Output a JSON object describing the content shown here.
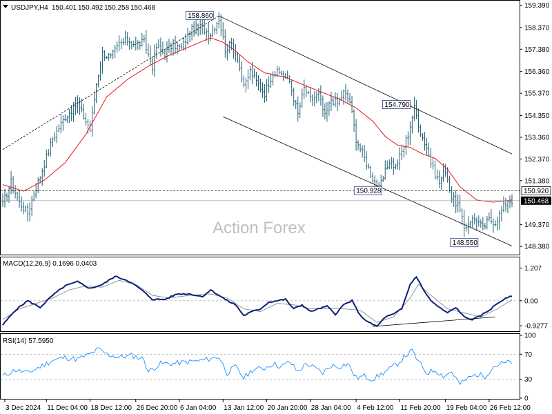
{
  "watermark": "Action Forex",
  "colors": {
    "price_bars": "#1f5e73",
    "moving_average": "#e8161d",
    "trend_lines": "#000000",
    "macd_line": "#0b1f7a",
    "signal_line": "#8a8a8a",
    "rsi_line": "#1e90ff",
    "current_price_box": "#000000",
    "level_box_border": "#1e3a8a"
  },
  "chart_data": [
    {
      "type": "ohlc",
      "panel": "price",
      "header": {
        "symbol": "USDJPY,H4",
        "open": "150.401",
        "high": "150.492",
        "low": "150.258",
        "close": "150.468"
      },
      "y_ticks": [
        "159.390",
        "158.370",
        "157.380",
        "156.360",
        "155.370",
        "154.350",
        "153.360",
        "152.370",
        "151.380",
        "149.370",
        "148.380"
      ],
      "ylim": [
        148.1,
        159.5
      ],
      "current_price": "150.468",
      "level_label": "150.920",
      "level_value": 150.92,
      "annotations": [
        {
          "label": "158.860",
          "value": 158.86,
          "x_index": 104
        },
        {
          "label": "154.790",
          "value": 154.79,
          "x_index": 198
        },
        {
          "label": "150.928",
          "value": 150.928,
          "x_index": 183
        },
        {
          "label": "148.550",
          "value": 148.55,
          "x_index": 228
        }
      ],
      "x_tick_labels": [
        "3 Dec 2024",
        "11 Dec 04:00",
        "18 Dec 12:00",
        "26 Dec 20:00",
        "6 Jan 04:00",
        "13 Jan 12:00",
        "20 Jan 20:00",
        "28 Jan 04:00",
        "4 Feb 12:00",
        "11 Feb 20:00",
        "19 Feb 04:00",
        "26 Feb 12:00"
      ],
      "x_tick_index": [
        1,
        21,
        42,
        64,
        85,
        106,
        127,
        148,
        170,
        191,
        213,
        234
      ],
      "bar_count": 246,
      "close_anchors": [
        [
          0,
          150.3
        ],
        [
          4,
          151.3
        ],
        [
          8,
          150.4
        ],
        [
          12,
          149.9
        ],
        [
          15,
          150.8
        ],
        [
          18,
          151.6
        ],
        [
          24,
          153.3
        ],
        [
          30,
          154.3
        ],
        [
          36,
          154.9
        ],
        [
          42,
          153.7
        ],
        [
          45,
          155.8
        ],
        [
          48,
          157.2
        ],
        [
          52,
          157.0
        ],
        [
          56,
          157.6
        ],
        [
          60,
          157.8
        ],
        [
          64,
          157.6
        ],
        [
          68,
          157.7
        ],
        [
          72,
          156.6
        ],
        [
          74,
          157.5
        ],
        [
          78,
          157.2
        ],
        [
          82,
          157.6
        ],
        [
          86,
          157.4
        ],
        [
          90,
          158.2
        ],
        [
          95,
          158.4
        ],
        [
          100,
          158.1
        ],
        [
          104,
          158.8
        ],
        [
          107,
          157.4
        ],
        [
          110,
          157.6
        ],
        [
          113,
          157.0
        ],
        [
          116,
          155.6
        ],
        [
          119,
          156.4
        ],
        [
          122,
          155.9
        ],
        [
          126,
          155.4
        ],
        [
          130,
          156.3
        ],
        [
          134,
          156.3
        ],
        [
          138,
          155.9
        ],
        [
          142,
          154.4
        ],
        [
          145,
          155.6
        ],
        [
          148,
          155.1
        ],
        [
          152,
          155.3
        ],
        [
          155,
          154.3
        ],
        [
          158,
          155.1
        ],
        [
          161,
          154.9
        ],
        [
          164,
          155.4
        ],
        [
          167,
          155.0
        ],
        [
          170,
          153.3
        ],
        [
          174,
          152.4
        ],
        [
          178,
          151.5
        ],
        [
          181,
          151.0
        ],
        [
          183,
          151.5
        ],
        [
          186,
          152.3
        ],
        [
          189,
          152.0
        ],
        [
          192,
          152.7
        ],
        [
          195,
          153.5
        ],
        [
          198,
          154.7
        ],
        [
          201,
          153.6
        ],
        [
          204,
          152.9
        ],
        [
          207,
          151.9
        ],
        [
          210,
          151.3
        ],
        [
          213,
          151.9
        ],
        [
          216,
          150.6
        ],
        [
          219,
          150.3
        ],
        [
          222,
          149.2
        ],
        [
          225,
          149.6
        ],
        [
          228,
          149.6
        ],
        [
          231,
          149.2
        ],
        [
          234,
          149.6
        ],
        [
          237,
          149.5
        ],
        [
          240,
          150.0
        ],
        [
          243,
          150.5
        ],
        [
          245,
          150.47
        ]
      ],
      "moving_average_anchors": [
        [
          0,
          151.2
        ],
        [
          10,
          150.9
        ],
        [
          20,
          151.4
        ],
        [
          30,
          152.2
        ],
        [
          40,
          153.5
        ],
        [
          50,
          155.2
        ],
        [
          60,
          156.0
        ],
        [
          70,
          156.6
        ],
        [
          80,
          157.1
        ],
        [
          90,
          157.5
        ],
        [
          100,
          157.9
        ],
        [
          106,
          157.7
        ],
        [
          112,
          157.3
        ],
        [
          118,
          156.8
        ],
        [
          126,
          156.3
        ],
        [
          136,
          156.1
        ],
        [
          146,
          155.7
        ],
        [
          154,
          155.4
        ],
        [
          162,
          155.1
        ],
        [
          170,
          154.7
        ],
        [
          178,
          154.1
        ],
        [
          184,
          153.4
        ],
        [
          190,
          153.0
        ],
        [
          196,
          152.9
        ],
        [
          202,
          152.6
        ],
        [
          208,
          152.4
        ],
        [
          214,
          151.9
        ],
        [
          220,
          151.1
        ],
        [
          228,
          150.5
        ],
        [
          236,
          150.4
        ],
        [
          245,
          150.5
        ]
      ],
      "trend_lines": [
        {
          "from": [
            0,
            152.8
          ],
          "to": [
            104,
            158.9
          ]
        },
        {
          "from": [
            104,
            158.9
          ],
          "to": [
            245,
            152.6
          ]
        },
        {
          "from": [
            106,
            154.3
          ],
          "to": [
            245,
            148.4
          ]
        }
      ]
    },
    {
      "type": "line",
      "panel": "macd",
      "title": "MACD(12,26,9) 0.1696 0.0403",
      "y_ticks": [
        "1.207",
        "0.00",
        "-0.9277"
      ],
      "ylim": [
        -1.1,
        1.55
      ],
      "series": [
        {
          "name": "MACD",
          "anchors": [
            [
              0,
              -0.9
            ],
            [
              6,
              -0.35
            ],
            [
              12,
              0.0
            ],
            [
              18,
              -0.25
            ],
            [
              24,
              0.2
            ],
            [
              30,
              0.55
            ],
            [
              36,
              0.7
            ],
            [
              42,
              0.45
            ],
            [
              48,
              0.6
            ],
            [
              54,
              0.9
            ],
            [
              60,
              0.75
            ],
            [
              66,
              0.45
            ],
            [
              72,
              0.05
            ],
            [
              78,
              0.05
            ],
            [
              84,
              0.25
            ],
            [
              90,
              0.25
            ],
            [
              96,
              0.15
            ],
            [
              100,
              0.4
            ],
            [
              104,
              0.2
            ],
            [
              108,
              0.0
            ],
            [
              112,
              -0.15
            ],
            [
              116,
              -0.55
            ],
            [
              120,
              -0.4
            ],
            [
              124,
              -0.3
            ],
            [
              128,
              -0.05
            ],
            [
              132,
              0.0
            ],
            [
              136,
              0.05
            ],
            [
              140,
              -0.3
            ],
            [
              144,
              -0.15
            ],
            [
              148,
              -0.4
            ],
            [
              152,
              -0.3
            ],
            [
              156,
              -0.2
            ],
            [
              160,
              -0.5
            ],
            [
              164,
              -0.15
            ],
            [
              168,
              0.0
            ],
            [
              172,
              -0.55
            ],
            [
              176,
              -0.8
            ],
            [
              180,
              -0.95
            ],
            [
              184,
              -0.6
            ],
            [
              188,
              -0.5
            ],
            [
              192,
              -0.3
            ],
            [
              196,
              0.6
            ],
            [
              199,
              0.9
            ],
            [
              202,
              0.45
            ],
            [
              206,
              0.0
            ],
            [
              210,
              -0.25
            ],
            [
              214,
              -0.45
            ],
            [
              218,
              -0.25
            ],
            [
              222,
              -0.6
            ],
            [
              226,
              -0.7
            ],
            [
              230,
              -0.55
            ],
            [
              234,
              -0.35
            ],
            [
              238,
              -0.1
            ],
            [
              241,
              0.05
            ],
            [
              245,
              0.17
            ]
          ]
        },
        {
          "name": "Signal",
          "anchors": [
            [
              0,
              -0.7
            ],
            [
              8,
              -0.3
            ],
            [
              16,
              -0.1
            ],
            [
              24,
              0.1
            ],
            [
              32,
              0.4
            ],
            [
              40,
              0.55
            ],
            [
              48,
              0.5
            ],
            [
              56,
              0.75
            ],
            [
              64,
              0.6
            ],
            [
              72,
              0.2
            ],
            [
              80,
              0.1
            ],
            [
              90,
              0.2
            ],
            [
              100,
              0.25
            ],
            [
              108,
              0.1
            ],
            [
              116,
              -0.3
            ],
            [
              124,
              -0.4
            ],
            [
              132,
              -0.1
            ],
            [
              140,
              -0.15
            ],
            [
              148,
              -0.3
            ],
            [
              156,
              -0.3
            ],
            [
              164,
              -0.3
            ],
            [
              172,
              -0.35
            ],
            [
              180,
              -0.8
            ],
            [
              188,
              -0.6
            ],
            [
              196,
              0.1
            ],
            [
              200,
              0.6
            ],
            [
              206,
              0.2
            ],
            [
              214,
              -0.3
            ],
            [
              222,
              -0.45
            ],
            [
              230,
              -0.6
            ],
            [
              238,
              -0.3
            ],
            [
              245,
              0.04
            ]
          ]
        }
      ],
      "trend_line": {
        "from": [
          178,
          -0.95
        ],
        "to": [
          237,
          -0.6
        ]
      }
    },
    {
      "type": "line",
      "panel": "rsi",
      "title": "RSI(14) 57.5950",
      "y_ticks": [
        "100",
        "70",
        "30",
        "0"
      ],
      "ylim": [
        0,
        100
      ],
      "levels": [
        70,
        30
      ],
      "series": [
        {
          "name": "RSI",
          "anchors": [
            [
              0,
              35
            ],
            [
              6,
              45
            ],
            [
              12,
              40
            ],
            [
              18,
              50
            ],
            [
              24,
              60
            ],
            [
              30,
              65
            ],
            [
              36,
              62
            ],
            [
              42,
              70
            ],
            [
              46,
              78
            ],
            [
              50,
              70
            ],
            [
              56,
              65
            ],
            [
              62,
              68
            ],
            [
              68,
              62
            ],
            [
              70,
              42
            ],
            [
              76,
              55
            ],
            [
              82,
              55
            ],
            [
              90,
              58
            ],
            [
              96,
              60
            ],
            [
              104,
              66
            ],
            [
              108,
              40
            ],
            [
              112,
              50
            ],
            [
              116,
              32
            ],
            [
              120,
              45
            ],
            [
              126,
              48
            ],
            [
              130,
              55
            ],
            [
              134,
              50
            ],
            [
              138,
              58
            ],
            [
              142,
              42
            ],
            [
              146,
              55
            ],
            [
              150,
              48
            ],
            [
              154,
              40
            ],
            [
              158,
              52
            ],
            [
              162,
              50
            ],
            [
              166,
              55
            ],
            [
              170,
              32
            ],
            [
              174,
              35
            ],
            [
              178,
              30
            ],
            [
              182,
              38
            ],
            [
              186,
              46
            ],
            [
              190,
              55
            ],
            [
              194,
              68
            ],
            [
              197,
              75
            ],
            [
              200,
              58
            ],
            [
              204,
              40
            ],
            [
              208,
              45
            ],
            [
              212,
              35
            ],
            [
              216,
              42
            ],
            [
              220,
              22
            ],
            [
              224,
              32
            ],
            [
              228,
              38
            ],
            [
              232,
              35
            ],
            [
              236,
              50
            ],
            [
              240,
              55
            ],
            [
              245,
              57.6
            ]
          ]
        }
      ]
    }
  ]
}
